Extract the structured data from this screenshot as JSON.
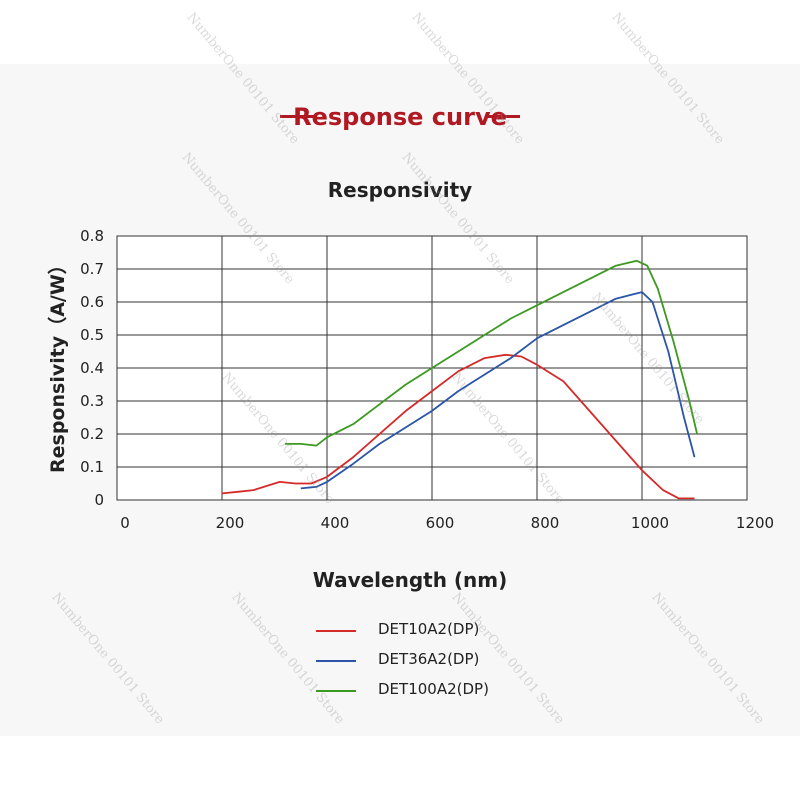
{
  "banner": {
    "title": "Response curve"
  },
  "watermark": "NumberOne 00101 Store",
  "chart_data": {
    "type": "line",
    "title": "Responsivity",
    "xlabel": "Wavelength (nm)",
    "ylabel": "Responsivity（A/W）",
    "xlim": [
      0,
      1200
    ],
    "ylim": [
      0,
      0.8
    ],
    "x_ticks": [
      0,
      200,
      400,
      600,
      800,
      1000,
      1200
    ],
    "y_ticks": [
      0,
      0.1,
      0.2,
      0.3,
      0.4,
      0.5,
      0.6,
      0.7,
      0.8
    ],
    "x_tick_labels": [
      "0",
      "200",
      "400",
      "600",
      "800",
      "1000",
      "1200"
    ],
    "y_tick_labels": [
      "0",
      "0.1",
      "0.2",
      "0.3",
      "0.4",
      "0.5",
      "0.6",
      "0.7",
      "0.8"
    ],
    "grid": true,
    "legend_position": "bottom",
    "series": [
      {
        "name": "DET10A2(DP)",
        "color": "#d42a2a",
        "points": [
          [
            200,
            0.02
          ],
          [
            230,
            0.025
          ],
          [
            260,
            0.03
          ],
          [
            290,
            0.045
          ],
          [
            310,
            0.055
          ],
          [
            340,
            0.05
          ],
          [
            370,
            0.05
          ],
          [
            400,
            0.07
          ],
          [
            450,
            0.13
          ],
          [
            500,
            0.2
          ],
          [
            550,
            0.27
          ],
          [
            600,
            0.33
          ],
          [
            650,
            0.39
          ],
          [
            700,
            0.43
          ],
          [
            740,
            0.44
          ],
          [
            770,
            0.435
          ],
          [
            800,
            0.41
          ],
          [
            850,
            0.36
          ],
          [
            900,
            0.27
          ],
          [
            950,
            0.18
          ],
          [
            1000,
            0.09
          ],
          [
            1040,
            0.03
          ],
          [
            1070,
            0.005
          ],
          [
            1100,
            0.005
          ]
        ]
      },
      {
        "name": "DET36A2(DP)",
        "color": "#2a55a8",
        "points": [
          [
            350,
            0.035
          ],
          [
            380,
            0.04
          ],
          [
            400,
            0.055
          ],
          [
            450,
            0.11
          ],
          [
            500,
            0.17
          ],
          [
            550,
            0.22
          ],
          [
            600,
            0.27
          ],
          [
            650,
            0.33
          ],
          [
            700,
            0.38
          ],
          [
            750,
            0.43
          ],
          [
            800,
            0.49
          ],
          [
            850,
            0.53
          ],
          [
            900,
            0.57
          ],
          [
            950,
            0.61
          ],
          [
            1000,
            0.63
          ],
          [
            1020,
            0.6
          ],
          [
            1050,
            0.45
          ],
          [
            1080,
            0.25
          ],
          [
            1100,
            0.13
          ]
        ]
      },
      {
        "name": "DET100A2(DP)",
        "color": "#3c9a20",
        "points": [
          [
            320,
            0.17
          ],
          [
            350,
            0.17
          ],
          [
            380,
            0.165
          ],
          [
            400,
            0.19
          ],
          [
            450,
            0.23
          ],
          [
            500,
            0.29
          ],
          [
            550,
            0.35
          ],
          [
            600,
            0.4
          ],
          [
            650,
            0.45
          ],
          [
            700,
            0.5
          ],
          [
            750,
            0.55
          ],
          [
            800,
            0.59
          ],
          [
            850,
            0.63
          ],
          [
            900,
            0.67
          ],
          [
            950,
            0.71
          ],
          [
            990,
            0.725
          ],
          [
            1010,
            0.71
          ],
          [
            1030,
            0.64
          ],
          [
            1060,
            0.48
          ],
          [
            1090,
            0.3
          ],
          [
            1105,
            0.2
          ]
        ]
      }
    ]
  }
}
